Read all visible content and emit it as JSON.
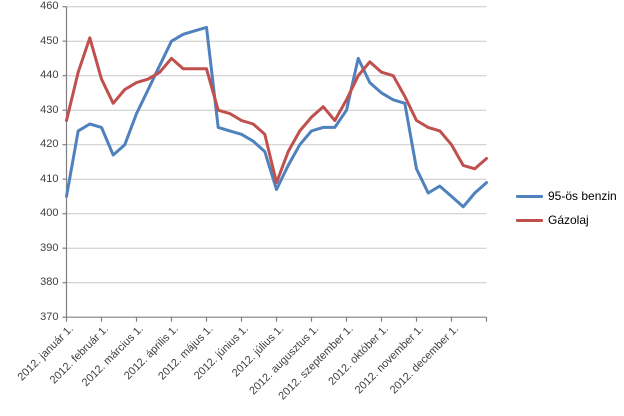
{
  "chart_data": {
    "type": "line",
    "title": "",
    "categories": [
      "2012. január 1.",
      "2012. február 1.",
      "2012. március 1.",
      "2012. április 1.",
      "2012. május 1.",
      "2012. június 1.",
      "2012. július 1.",
      "2012. augusztus 1.",
      "2012. szeptember 1.",
      "2012. október 1.",
      "2012. november 1.",
      "2012. december 1."
    ],
    "points_per_month": 3,
    "series": [
      {
        "name": "95-ös benzin",
        "color": "#4F81BD",
        "values": [
          405,
          424,
          426,
          425,
          417,
          420,
          429,
          436,
          443,
          450,
          452,
          453,
          454,
          425,
          424,
          423,
          421,
          418,
          407,
          414,
          420,
          424,
          425,
          425,
          430,
          445,
          438,
          435,
          433,
          432,
          413,
          406,
          408,
          405,
          402,
          406,
          409
        ]
      },
      {
        "name": "Gázolaj",
        "color": "#C0504D",
        "values": [
          427,
          441,
          451,
          439,
          432,
          436,
          438,
          439,
          441,
          445,
          442,
          442,
          442,
          430,
          429,
          427,
          426,
          423,
          409,
          418,
          424,
          428,
          431,
          427,
          433,
          440,
          444,
          441,
          440,
          434,
          427,
          425,
          424,
          420,
          414,
          413,
          416
        ]
      }
    ],
    "ylim": [
      370,
      460
    ],
    "y_step": 10,
    "y_tick_labels": [
      "460",
      "450",
      "440",
      "430",
      "420",
      "410",
      "400",
      "390",
      "380",
      "370"
    ],
    "grid": "horizontal",
    "legend_position": "right"
  },
  "colors": {
    "background": "#FFFFFF",
    "gridline": "#C8C8C8",
    "axis": "#808080",
    "tick": "#808080",
    "label_text": "#3F3F3F",
    "legend_text": "#000000"
  }
}
